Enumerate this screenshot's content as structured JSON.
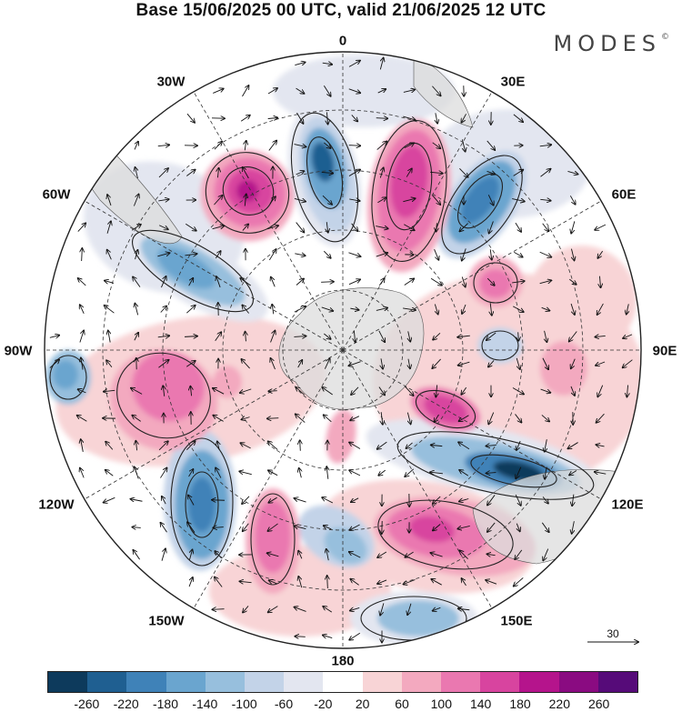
{
  "title": "Base 15/06/2025 00 UTC, valid 21/06/2025 12 UTC",
  "brand": "MODES",
  "brand_mark": "©",
  "longitude_labels": [
    {
      "id": "0",
      "text": "0"
    },
    {
      "id": "30E",
      "text": "30E"
    },
    {
      "id": "60E",
      "text": "60E"
    },
    {
      "id": "90E",
      "text": "90E"
    },
    {
      "id": "120E",
      "text": "120E"
    },
    {
      "id": "150E",
      "text": "150E"
    },
    {
      "id": "180",
      "text": "180"
    },
    {
      "id": "150W",
      "text": "150W"
    },
    {
      "id": "120W",
      "text": "120W"
    },
    {
      "id": "90W",
      "text": "90W"
    },
    {
      "id": "60W",
      "text": "60W"
    },
    {
      "id": "30W",
      "text": "30W"
    }
  ],
  "vector_scale": {
    "value": "30"
  },
  "colorbar": {
    "colors": [
      "#0d3a5c",
      "#1f5f91",
      "#3f82b8",
      "#6aa5cf",
      "#97bfdd",
      "#c3d3e8",
      "#e3e6f0",
      "#ffffff",
      "#f8d4d6",
      "#f3a9bf",
      "#ea78b0",
      "#d8449f",
      "#b5148c",
      "#8a0b81",
      "#560b79"
    ],
    "ticks": [
      "-260",
      "-220",
      "-180",
      "-140",
      "-100",
      "-60",
      "-20",
      "20",
      "60",
      "100",
      "140",
      "180",
      "220",
      "260"
    ]
  }
}
